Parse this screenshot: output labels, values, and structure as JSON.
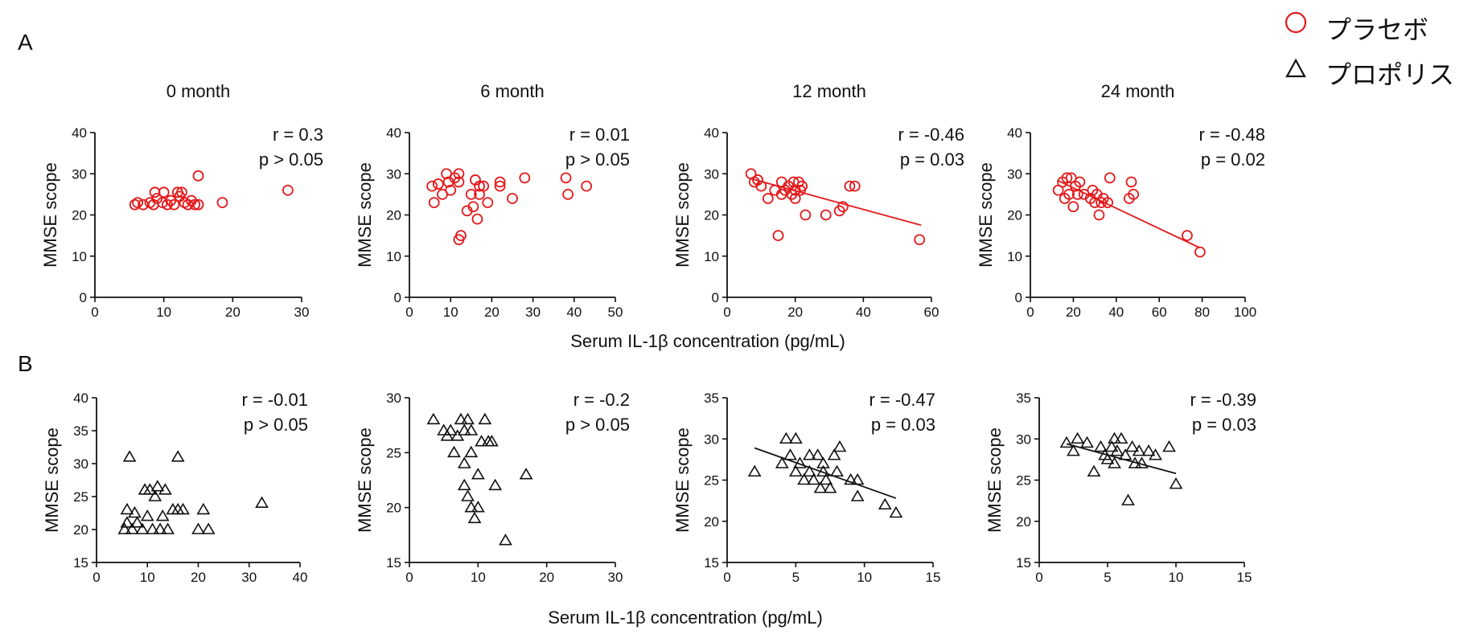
{
  "panel_labels": [
    "A",
    "B"
  ],
  "shared_xlabel": "Serum IL-1β concentration (pg/mL)",
  "colors": {
    "placebo": "#e31a1c",
    "propolis": "#111111"
  },
  "legend": [
    {
      "label": "プラセボ",
      "marker": "circle",
      "color": "#e31a1c"
    },
    {
      "label": "プロポリス",
      "marker": "triangle",
      "color": "#111111"
    }
  ],
  "chart_data": [
    {
      "type": "scatter",
      "group": "A",
      "title": "0 month",
      "xlabel": "",
      "ylabel": "MMSE scope",
      "xlim": [
        0,
        30
      ],
      "ylim": [
        0,
        40
      ],
      "xticks": [
        0,
        10,
        20,
        30
      ],
      "yticks": [
        0,
        10,
        20,
        30,
        40
      ],
      "stats": [
        "r = 0.3",
        "p > 0.05"
      ],
      "marker": "circle",
      "color": "#e31a1c",
      "trendline": null,
      "points": [
        [
          5.8,
          22.5
        ],
        [
          6.2,
          23
        ],
        [
          7,
          22.5
        ],
        [
          8,
          23
        ],
        [
          8.5,
          22.5
        ],
        [
          8.7,
          25.5
        ],
        [
          9,
          24
        ],
        [
          9.8,
          23
        ],
        [
          10,
          25.5
        ],
        [
          10.5,
          22.5
        ],
        [
          11,
          23.5
        ],
        [
          11.5,
          22.5
        ],
        [
          12,
          25.5
        ],
        [
          12.3,
          24.5
        ],
        [
          12.6,
          25.5
        ],
        [
          13,
          23
        ],
        [
          13.5,
          22.5
        ],
        [
          14,
          23.5
        ],
        [
          14.5,
          22.5
        ],
        [
          15,
          22.5
        ],
        [
          15,
          29.5
        ],
        [
          18.5,
          23
        ],
        [
          28,
          26
        ]
      ]
    },
    {
      "type": "scatter",
      "group": "A",
      "title": "6 month",
      "xlabel": "",
      "ylabel": "MMSE scope",
      "xlim": [
        0,
        50
      ],
      "ylim": [
        0,
        40
      ],
      "xticks": [
        0,
        10,
        20,
        30,
        40,
        50
      ],
      "yticks": [
        0,
        10,
        20,
        30,
        40
      ],
      "stats": [
        "r = 0.01",
        "p > 0.05"
      ],
      "marker": "circle",
      "color": "#e31a1c",
      "trendline": null,
      "points": [
        [
          5.5,
          27
        ],
        [
          6,
          23
        ],
        [
          7,
          27.5
        ],
        [
          8,
          25
        ],
        [
          9,
          30
        ],
        [
          9.5,
          28
        ],
        [
          10,
          26
        ],
        [
          11,
          29
        ],
        [
          12,
          30
        ],
        [
          12,
          28
        ],
        [
          12,
          14
        ],
        [
          12.5,
          15
        ],
        [
          14,
          21
        ],
        [
          15,
          25
        ],
        [
          15.5,
          22
        ],
        [
          16,
          28.5
        ],
        [
          16.5,
          19
        ],
        [
          17,
          25
        ],
        [
          17,
          27
        ],
        [
          18,
          27
        ],
        [
          19,
          23
        ],
        [
          22,
          27
        ],
        [
          22,
          28
        ],
        [
          25,
          24
        ],
        [
          28,
          29
        ],
        [
          38,
          29
        ],
        [
          38.5,
          25
        ],
        [
          43,
          27
        ]
      ]
    },
    {
      "type": "scatter",
      "group": "A",
      "title": "12 month",
      "xlabel": "",
      "ylabel": "MMSE scope",
      "xlim": [
        0,
        60
      ],
      "ylim": [
        0,
        40
      ],
      "xticks": [
        0,
        20,
        40,
        60
      ],
      "yticks": [
        0,
        10,
        20,
        30,
        40
      ],
      "stats": [
        "r = -0.46",
        "p = 0.03"
      ],
      "marker": "circle",
      "color": "#e31a1c",
      "trendline": [
        [
          7,
          28.8
        ],
        [
          57,
          17.5
        ]
      ],
      "points": [
        [
          7,
          30
        ],
        [
          8,
          28
        ],
        [
          9,
          28.5
        ],
        [
          10,
          27
        ],
        [
          12,
          24
        ],
        [
          14,
          26
        ],
        [
          15,
          15
        ],
        [
          16,
          25
        ],
        [
          16,
          28
        ],
        [
          17,
          26
        ],
        [
          18,
          27
        ],
        [
          19,
          25
        ],
        [
          19.5,
          28
        ],
        [
          20,
          24
        ],
        [
          20,
          26
        ],
        [
          21,
          28
        ],
        [
          21.5,
          26
        ],
        [
          22,
          27
        ],
        [
          23,
          20
        ],
        [
          29,
          20
        ],
        [
          33,
          21
        ],
        [
          34,
          22
        ],
        [
          36,
          27
        ],
        [
          37.5,
          27
        ],
        [
          56.5,
          14
        ]
      ]
    },
    {
      "type": "scatter",
      "group": "A",
      "title": "24 month",
      "xlabel": "",
      "ylabel": "MMSE scope",
      "xlim": [
        0,
        100
      ],
      "ylim": [
        0,
        40
      ],
      "xticks": [
        0,
        20,
        40,
        60,
        80,
        100
      ],
      "yticks": [
        0,
        10,
        20,
        30,
        40
      ],
      "stats": [
        "r = -0.48",
        "p = 0.02"
      ],
      "marker": "circle",
      "color": "#e31a1c",
      "trendline": [
        [
          13,
          28.3
        ],
        [
          79,
          12
        ]
      ],
      "points": [
        [
          13,
          26
        ],
        [
          15,
          28
        ],
        [
          16,
          24
        ],
        [
          17,
          29
        ],
        [
          18,
          25
        ],
        [
          19,
          29
        ],
        [
          20,
          22
        ],
        [
          21,
          27
        ],
        [
          22,
          25
        ],
        [
          23,
          28
        ],
        [
          25,
          25
        ],
        [
          28,
          24
        ],
        [
          29,
          26
        ],
        [
          30,
          23
        ],
        [
          31,
          25
        ],
        [
          32,
          20
        ],
        [
          33,
          23
        ],
        [
          34,
          24
        ],
        [
          36,
          23
        ],
        [
          37,
          29
        ],
        [
          46,
          24
        ],
        [
          47,
          28
        ],
        [
          48,
          25
        ],
        [
          73,
          15
        ],
        [
          79,
          11
        ]
      ]
    },
    {
      "type": "scatter",
      "group": "B",
      "title": "",
      "xlabel": "",
      "ylabel": "MMSE scope",
      "xlim": [
        0,
        40
      ],
      "ylim": [
        15,
        40
      ],
      "xticks": [
        0,
        10,
        20,
        30,
        40
      ],
      "yticks": [
        15,
        20,
        25,
        30,
        35,
        40
      ],
      "stats": [
        "r = -0.01",
        "p > 0.05"
      ],
      "marker": "triangle",
      "color": "#111111",
      "trendline": null,
      "points": [
        [
          5.5,
          20
        ],
        [
          6,
          23
        ],
        [
          6,
          21
        ],
        [
          6.5,
          31
        ],
        [
          7,
          20
        ],
        [
          7.5,
          22.5
        ],
        [
          8,
          21
        ],
        [
          9,
          20
        ],
        [
          9.5,
          26
        ],
        [
          10,
          22
        ],
        [
          10.5,
          26
        ],
        [
          11,
          20
        ],
        [
          11.5,
          25
        ],
        [
          12,
          26.5
        ],
        [
          12.5,
          20
        ],
        [
          13,
          22
        ],
        [
          13.5,
          26
        ],
        [
          14,
          20
        ],
        [
          15,
          23
        ],
        [
          16,
          23
        ],
        [
          16,
          31
        ],
        [
          17,
          23
        ],
        [
          20,
          20
        ],
        [
          21,
          23
        ],
        [
          22,
          20
        ],
        [
          32.5,
          24
        ]
      ]
    },
    {
      "type": "scatter",
      "group": "B",
      "title": "",
      "xlabel": "",
      "ylabel": "MMSE scope",
      "xlim": [
        0,
        30
      ],
      "ylim": [
        15,
        30
      ],
      "xticks": [
        0,
        10,
        20,
        30
      ],
      "yticks": [
        15,
        20,
        25,
        30
      ],
      "stats": [
        "r = -0.2",
        "p > 0.05"
      ],
      "marker": "triangle",
      "color": "#111111",
      "trendline": null,
      "points": [
        [
          3.5,
          28
        ],
        [
          5,
          27
        ],
        [
          5.5,
          26.5
        ],
        [
          6,
          27
        ],
        [
          6.5,
          25
        ],
        [
          7,
          26.5
        ],
        [
          7.5,
          28
        ],
        [
          8,
          27
        ],
        [
          8,
          24
        ],
        [
          8,
          22
        ],
        [
          8.5,
          28
        ],
        [
          8.5,
          21
        ],
        [
          9,
          27
        ],
        [
          9,
          20
        ],
        [
          9,
          25
        ],
        [
          9.5,
          19
        ],
        [
          10,
          23
        ],
        [
          10,
          20
        ],
        [
          10.5,
          26
        ],
        [
          11,
          28
        ],
        [
          11.5,
          26
        ],
        [
          12,
          26
        ],
        [
          12.5,
          22
        ],
        [
          14,
          17
        ],
        [
          17,
          23
        ]
      ]
    },
    {
      "type": "scatter",
      "group": "B",
      "title": "",
      "xlabel": "",
      "ylabel": "MMSE scope",
      "xlim": [
        0,
        15
      ],
      "ylim": [
        15,
        35
      ],
      "xticks": [
        0,
        5,
        10,
        15
      ],
      "yticks": [
        15,
        20,
        25,
        30,
        35
      ],
      "stats": [
        "r = -0.47",
        "p = 0.03"
      ],
      "marker": "triangle",
      "color": "#111111",
      "trendline": [
        [
          2,
          28.9
        ],
        [
          12.3,
          22.8
        ]
      ],
      "points": [
        [
          2,
          26
        ],
        [
          4,
          27
        ],
        [
          4.3,
          30
        ],
        [
          4.6,
          28
        ],
        [
          5,
          30
        ],
        [
          5,
          26
        ],
        [
          5.3,
          27
        ],
        [
          5.6,
          25
        ],
        [
          6,
          28
        ],
        [
          6,
          26
        ],
        [
          6.3,
          25
        ],
        [
          6.6,
          28
        ],
        [
          6.8,
          24
        ],
        [
          7,
          27
        ],
        [
          7,
          26
        ],
        [
          7.2,
          25
        ],
        [
          7.5,
          24
        ],
        [
          7.8,
          28
        ],
        [
          8,
          26
        ],
        [
          8.2,
          29
        ],
        [
          9,
          25
        ],
        [
          9.5,
          25
        ],
        [
          9.5,
          23
        ],
        [
          11.5,
          22
        ],
        [
          12.3,
          21
        ]
      ]
    },
    {
      "type": "scatter",
      "group": "B",
      "title": "",
      "xlabel": "",
      "ylabel": "MMSE scope",
      "xlim": [
        0,
        15
      ],
      "ylim": [
        15,
        35
      ],
      "xticks": [
        0,
        5,
        10,
        15
      ],
      "yticks": [
        15,
        20,
        25,
        30,
        35
      ],
      "stats": [
        "r = -0.39",
        "p = 0.03"
      ],
      "marker": "triangle",
      "color": "#111111",
      "trendline": [
        [
          2,
          29.4
        ],
        [
          10,
          25.8
        ]
      ],
      "points": [
        [
          2,
          29.5
        ],
        [
          2.5,
          28.5
        ],
        [
          2.8,
          30
        ],
        [
          3.5,
          29.5
        ],
        [
          4,
          26
        ],
        [
          4.5,
          29
        ],
        [
          4.8,
          28
        ],
        [
          5,
          27.5
        ],
        [
          5.3,
          29
        ],
        [
          5.5,
          30
        ],
        [
          5.5,
          27
        ],
        [
          5.7,
          28.5
        ],
        [
          6,
          30
        ],
        [
          6.3,
          28
        ],
        [
          6.5,
          22.5
        ],
        [
          6.8,
          29
        ],
        [
          7,
          27
        ],
        [
          7.3,
          28.5
        ],
        [
          7.5,
          27
        ],
        [
          8,
          28.5
        ],
        [
          8.5,
          28
        ],
        [
          9.5,
          29
        ],
        [
          10,
          24.5
        ]
      ]
    }
  ]
}
